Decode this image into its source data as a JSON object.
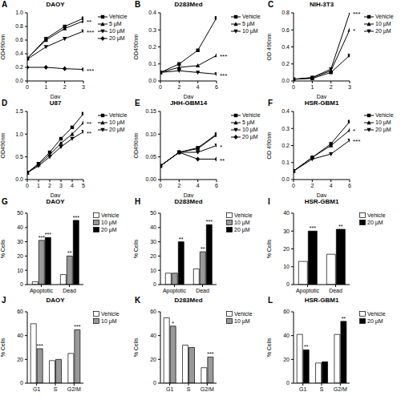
{
  "chart_data": [
    {
      "panel": "A",
      "type": "line",
      "title": "DAOY",
      "x_label": "Day",
      "y_label": "OD490nm",
      "x": [
        0,
        1,
        2,
        3
      ],
      "xlim": [
        0,
        3
      ],
      "xticks": [
        0,
        1,
        2,
        3
      ],
      "ylim": [
        0,
        1
      ],
      "yticks": [
        {
          "value": 0,
          "label": "0.0"
        },
        0.2,
        0.4,
        0.6,
        0.8,
        {
          "value": 1,
          "label": "1.0"
        }
      ],
      "legend": "top-right",
      "series": [
        {
          "name": "Vehicle",
          "color": "#000000",
          "marker": "square",
          "values": [
            0.33,
            0.62,
            0.8,
            0.92
          ]
        },
        {
          "name": "5 µM",
          "color": "#000000",
          "marker": "triangle",
          "values": [
            0.33,
            0.6,
            0.77,
            0.88
          ],
          "annotation": "**"
        },
        {
          "name": "10 µM",
          "color": "#000000",
          "marker": "triangle-down",
          "values": [
            0.32,
            0.5,
            0.62,
            0.73
          ],
          "annotation": "***"
        },
        {
          "name": "20 µM",
          "color": "#000000",
          "marker": "diamond",
          "values": [
            0.2,
            0.2,
            0.18,
            0.17
          ],
          "annotation": "***"
        }
      ]
    },
    {
      "panel": "B",
      "type": "line",
      "title": "D283Med",
      "x_label": "Day",
      "y_label": "OD490nm",
      "x": [
        0,
        2,
        4,
        6
      ],
      "xlim": [
        0,
        6
      ],
      "xticks": [
        0,
        2,
        4,
        6
      ],
      "ylim": [
        0,
        0.4
      ],
      "yticks": [
        {
          "value": 0,
          "label": "0.0"
        },
        0.1,
        0.2,
        0.3,
        0.4
      ],
      "legend": "top-right",
      "series": [
        {
          "name": "Vehicle",
          "color": "#000000",
          "marker": "square",
          "values": [
            0.05,
            0.1,
            0.18,
            0.37
          ]
        },
        {
          "name": "5 µM",
          "color": "#000000",
          "marker": "triangle",
          "values": [
            0.05,
            0.08,
            0.09,
            0.15
          ],
          "annotation": "***"
        },
        {
          "name": "10 µM",
          "color": "#000000",
          "marker": "triangle-down",
          "values": [
            0.05,
            0.06,
            0.05,
            0.04
          ],
          "annotation": "***"
        }
      ]
    },
    {
      "panel": "C",
      "type": "line",
      "title": "NIH-3T3",
      "x_label": "Day",
      "y_label": "OD 490nm",
      "x": [
        0,
        1,
        2,
        3
      ],
      "xlim": [
        0,
        3
      ],
      "xticks": [
        0,
        1,
        2,
        3
      ],
      "ylim": [
        0,
        0.8
      ],
      "yticks": [
        {
          "value": 0,
          "label": "0.0"
        },
        0.2,
        0.4,
        0.6,
        0.8
      ],
      "legend": "top-right",
      "series": [
        {
          "name": "Vehicle",
          "color": "#000000",
          "marker": "square",
          "values": [
            0.02,
            0.03,
            0.1,
            0.3
          ]
        },
        {
          "name": "10 µM",
          "color": "#000000",
          "marker": "triangle",
          "values": [
            0.02,
            0.04,
            0.12,
            0.6
          ],
          "annotation": "*"
        },
        {
          "name": "20 µM",
          "color": "#000000",
          "marker": "triangle-down",
          "values": [
            0.02,
            0.04,
            0.14,
            0.8
          ],
          "annotation": "***"
        }
      ]
    },
    {
      "panel": "D",
      "type": "line",
      "title": "U87",
      "x_label": "Day",
      "y_label": "OD490nm",
      "x": [
        0,
        1,
        2,
        3,
        4,
        5
      ],
      "xlim": [
        0,
        5
      ],
      "xticks": [
        0,
        1,
        2,
        3,
        4,
        5
      ],
      "ylim": [
        0,
        1.5
      ],
      "yticks": [
        {
          "value": 0,
          "label": "0.0"
        },
        0.5,
        {
          "value": 1,
          "label": "1.0"
        },
        1.5
      ],
      "legend": "top-right",
      "series": [
        {
          "name": "Vehicle",
          "color": "#000000",
          "marker": "square",
          "values": [
            0.15,
            0.35,
            0.6,
            0.9,
            1.15,
            1.45
          ]
        },
        {
          "name": "10 µM",
          "color": "#000000",
          "marker": "triangle",
          "values": [
            0.15,
            0.33,
            0.55,
            0.8,
            1.0,
            1.25
          ],
          "annotation": "**"
        },
        {
          "name": "20 µM",
          "color": "#000000",
          "marker": "triangle-down",
          "values": [
            0.15,
            0.3,
            0.5,
            0.72,
            0.9,
            1.05
          ],
          "annotation": "**"
        }
      ]
    },
    {
      "panel": "E",
      "type": "line",
      "title": "JHH-GBM14",
      "x_label": "Day",
      "y_label": "OD490nm",
      "x": [
        0,
        2,
        4,
        6
      ],
      "xlim": [
        0,
        6
      ],
      "xticks": [
        0,
        2,
        4,
        6
      ],
      "ylim": [
        0,
        0.15
      ],
      "yticks": [
        {
          "value": 0,
          "label": "0.00"
        },
        0.05,
        {
          "value": 0.1,
          "label": "0.10"
        },
        0.15
      ],
      "legend": "top-right",
      "series": [
        {
          "name": "Vehicle",
          "color": "#000000",
          "marker": "square",
          "values": [
            0.03,
            0.06,
            0.07,
            0.1
          ]
        },
        {
          "name": "5 µM",
          "color": "#000000",
          "marker": "triangle",
          "values": [
            0.03,
            0.06,
            0.068,
            0.098
          ]
        },
        {
          "name": "10 µM",
          "color": "#000000",
          "marker": "triangle-down",
          "values": [
            0.03,
            0.06,
            0.06,
            0.075
          ],
          "annotation": "*"
        },
        {
          "name": "20 µM",
          "color": "#000000",
          "marker": "diamond",
          "values": [
            0.03,
            0.06,
            0.045,
            0.045
          ],
          "annotation": "**"
        }
      ]
    },
    {
      "panel": "F",
      "type": "line",
      "title": "HSR-GBM1",
      "x_label": "Day",
      "y_label": "OD 490nm",
      "x": [
        0,
        2,
        4,
        6
      ],
      "xlim": [
        0,
        6
      ],
      "xticks": [
        0,
        2,
        4,
        6
      ],
      "ylim": [
        0,
        0.4
      ],
      "yticks": [
        {
          "value": 0,
          "label": "0.0"
        },
        0.1,
        0.2,
        0.3,
        0.4
      ],
      "legend": "top-right",
      "series": [
        {
          "name": "Vehicle",
          "color": "#000000",
          "marker": "square",
          "values": [
            0.05,
            0.13,
            0.21,
            0.34
          ]
        },
        {
          "name": "10 µM",
          "color": "#000000",
          "marker": "triangle",
          "values": [
            0.05,
            0.13,
            0.2,
            0.29
          ],
          "annotation": "*"
        },
        {
          "name": "20 µM",
          "color": "#000000",
          "marker": "triangle-down",
          "values": [
            0.05,
            0.12,
            0.15,
            0.23
          ],
          "annotation": "***"
        }
      ]
    },
    {
      "panel": "G",
      "type": "bar",
      "title": "DAOY",
      "y_label": "% Cells",
      "categories": [
        "Apoptotic",
        "Dead"
      ],
      "ylim": [
        0,
        50
      ],
      "yticks": [
        0,
        10,
        20,
        30,
        40,
        50
      ],
      "legend": "top-right",
      "series": [
        {
          "name": "Vehicle",
          "color": "#ffffff",
          "values": [
            2,
            7
          ],
          "significance": [
            null,
            null
          ]
        },
        {
          "name": "10 µM",
          "color": "#999999",
          "values": [
            31,
            20
          ],
          "significance": [
            "***",
            "**"
          ]
        },
        {
          "name": "20 µM",
          "color": "#000000",
          "values": [
            33,
            45
          ],
          "significance": [
            "***",
            "***"
          ]
        }
      ]
    },
    {
      "panel": "H",
      "type": "bar",
      "title": "D283Med",
      "y_label": "% Cells",
      "categories": [
        "Apoptotic",
        "Dead"
      ],
      "ylim": [
        0,
        50
      ],
      "yticks": [
        0,
        10,
        20,
        30,
        40,
        50
      ],
      "legend": "top-right",
      "series": [
        {
          "name": "Vehicle",
          "color": "#ffffff",
          "values": [
            8,
            11
          ],
          "significance": [
            null,
            null
          ]
        },
        {
          "name": "10 µM",
          "color": "#999999",
          "values": [
            8,
            23
          ],
          "significance": [
            null,
            "**"
          ]
        },
        {
          "name": "20 µM",
          "color": "#000000",
          "values": [
            30,
            42
          ],
          "significance": [
            "**",
            "***"
          ]
        }
      ]
    },
    {
      "panel": "I",
      "type": "bar",
      "title": "HSR-GBM1",
      "y_label": "% Cells",
      "categories": [
        "Apoptotic",
        "Dead"
      ],
      "ylim": [
        0,
        40
      ],
      "yticks": [
        0,
        10,
        20,
        30,
        40
      ],
      "legend": "top-right",
      "series": [
        {
          "name": "Vehicle",
          "color": "#ffffff",
          "values": [
            13,
            17
          ],
          "significance": [
            null,
            null
          ]
        },
        {
          "name": "20 µM",
          "color": "#000000",
          "values": [
            30,
            31
          ],
          "significance": [
            "***",
            "**"
          ]
        }
      ]
    },
    {
      "panel": "J",
      "type": "bar",
      "title": "DAOY",
      "y_label": "% Cells",
      "categories": [
        "G1",
        "S",
        "G2/M"
      ],
      "ylim": [
        0,
        60
      ],
      "yticks": [
        0,
        20,
        40,
        60
      ],
      "legend": "top-right",
      "series": [
        {
          "name": "Vehicle",
          "color": "#ffffff",
          "values": [
            50,
            19,
            25
          ],
          "significance": [
            null,
            null,
            null
          ]
        },
        {
          "name": "10 µM",
          "color": "#999999",
          "values": [
            29,
            20,
            45
          ],
          "significance": [
            "***",
            null,
            "***"
          ]
        }
      ]
    },
    {
      "panel": "K",
      "type": "bar",
      "title": "D283Med",
      "y_label": "% Cells",
      "categories": [
        "G1",
        "S",
        "G2/M"
      ],
      "ylim": [
        0,
        60
      ],
      "yticks": [
        0,
        20,
        40,
        60
      ],
      "legend": "top-right",
      "series": [
        {
          "name": "Vehicle",
          "color": "#ffffff",
          "values": [
            55,
            32,
            13
          ],
          "significance": [
            null,
            null,
            null
          ]
        },
        {
          "name": "10 µM",
          "color": "#999999",
          "values": [
            48,
            30,
            22
          ],
          "significance": [
            "*",
            null,
            "***"
          ]
        }
      ]
    },
    {
      "panel": "L",
      "type": "bar",
      "title": "HSR-GBM1",
      "y_label": "% Cells",
      "categories": [
        "G1",
        "S",
        "G2/M"
      ],
      "ylim": [
        0,
        60
      ],
      "yticks": [
        0,
        20,
        40,
        60
      ],
      "legend": "top-right",
      "series": [
        {
          "name": "Vehicle",
          "color": "#ffffff",
          "values": [
            41,
            17,
            41
          ],
          "significance": [
            null,
            null,
            null
          ]
        },
        {
          "name": "20 µM",
          "color": "#000000",
          "values": [
            28,
            18,
            52
          ],
          "significance": [
            "**",
            null,
            "**"
          ]
        }
      ]
    }
  ]
}
